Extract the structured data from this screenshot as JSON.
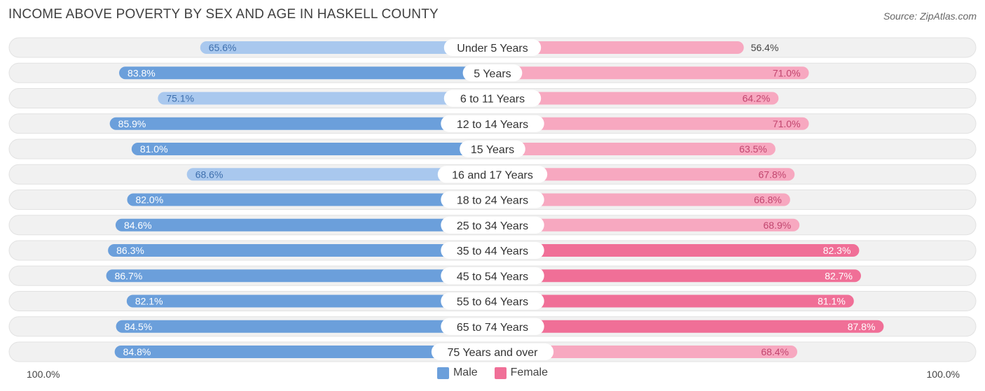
{
  "header": {
    "title": "INCOME ABOVE POVERTY BY SEX AND AGE IN HASKELL COUNTY",
    "source": "Source: ZipAtlas.com"
  },
  "colors": {
    "male_strong": "#6b9fdb",
    "male_light": "#a9c8ee",
    "female_strong": "#f06f97",
    "female_light": "#f7a8c0",
    "row_bg": "#f1f1f1"
  },
  "chart_data": {
    "type": "bar",
    "orientation": "horizontal-diverging",
    "title": "INCOME ABOVE POVERTY BY SEX AND AGE IN HASKELL COUNTY",
    "categories": [
      "Under 5 Years",
      "5 Years",
      "6 to 11 Years",
      "12 to 14 Years",
      "15 Years",
      "16 and 17 Years",
      "18 to 24 Years",
      "25 to 34 Years",
      "35 to 44 Years",
      "45 to 54 Years",
      "55 to 64 Years",
      "65 to 74 Years",
      "75 Years and over"
    ],
    "series": [
      {
        "name": "Male",
        "values": [
          65.6,
          83.8,
          75.1,
          85.9,
          81.0,
          68.6,
          82.0,
          84.6,
          86.3,
          86.7,
          82.1,
          84.5,
          84.8
        ]
      },
      {
        "name": "Female",
        "values": [
          56.4,
          71.0,
          64.2,
          71.0,
          63.5,
          67.8,
          66.8,
          68.9,
          82.3,
          82.7,
          81.1,
          87.8,
          68.4
        ]
      }
    ],
    "value_labels": {
      "male": [
        "65.6%",
        "83.8%",
        "75.1%",
        "85.9%",
        "81.0%",
        "68.6%",
        "82.0%",
        "84.6%",
        "86.3%",
        "86.7%",
        "82.1%",
        "84.5%",
        "84.8%"
      ],
      "female": [
        "56.4%",
        "71.0%",
        "64.2%",
        "71.0%",
        "63.5%",
        "67.8%",
        "66.8%",
        "68.9%",
        "82.3%",
        "82.7%",
        "81.1%",
        "87.8%",
        "68.4%"
      ]
    },
    "axis": {
      "left_label": "100.0%",
      "right_label": "100.0%",
      "range": [
        0,
        100
      ]
    },
    "legend": [
      {
        "name": "Male"
      },
      {
        "name": "Female"
      }
    ]
  }
}
